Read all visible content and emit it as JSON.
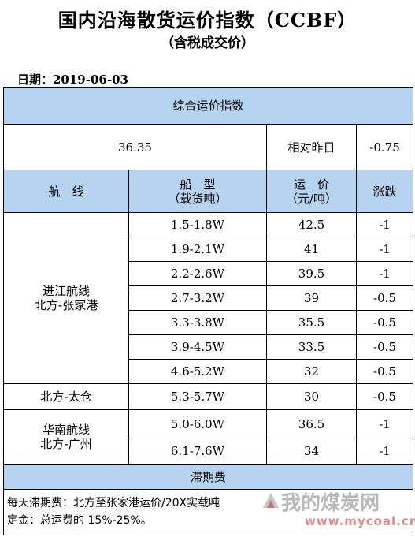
{
  "header": {
    "title": "国内沿海散货运价指数（CCBF）",
    "subtitle": "（含税成交价）",
    "date": "日期：2019-06-03"
  },
  "index": {
    "section_title": "综合运价指数",
    "value": "36.35",
    "compare_label": "相对昨日",
    "change": "-0.75"
  },
  "columns": {
    "route": "航　线",
    "ship_type": "船　型",
    "ship_type_unit": "（载货吨）",
    "price": "运　价",
    "price_unit": "（元/吨）",
    "change": "涨跌"
  },
  "routes": [
    {
      "name_line1": "进江航线",
      "name_line2": "北方-张家港",
      "rows": [
        {
          "ship": "1.5-1.8W",
          "price": "42.5",
          "change": "-1"
        },
        {
          "ship": "1.9-2.1W",
          "price": "41",
          "change": "-1"
        },
        {
          "ship": "2.2-2.6W",
          "price": "39.5",
          "change": "-1"
        },
        {
          "ship": "2.7-3.2W",
          "price": "39",
          "change": "-0.5"
        },
        {
          "ship": "3.3-3.8W",
          "price": "35.5",
          "change": "-0.5"
        },
        {
          "ship": "3.9-4.5W",
          "price": "33.5",
          "change": "-0.5"
        },
        {
          "ship": "4.6-5.2W",
          "price": "32",
          "change": "-0.5"
        }
      ]
    },
    {
      "name_line1": "北方-太仓",
      "rows": [
        {
          "ship": "5.3-5.7W",
          "price": "30",
          "change": "-0.5"
        }
      ]
    },
    {
      "name_line1": "华南航线",
      "name_line2": "北方-广州",
      "rows": [
        {
          "ship": "5.0-6.0W",
          "price": "36.5",
          "change": "-1"
        },
        {
          "ship": "6.1-7.6W",
          "price": "34",
          "change": "-1"
        }
      ]
    }
  ],
  "demurrage": {
    "section_title": "滞期费",
    "line1": "每天滞期费：北方至张家港运价/20X实载吨",
    "line2": "定金：总运费的 15%-25%。"
  },
  "watermark": {
    "text": "我的煤炭网",
    "url": "www.mycoal.cn",
    "logo": "mycoal-logo-icon"
  }
}
